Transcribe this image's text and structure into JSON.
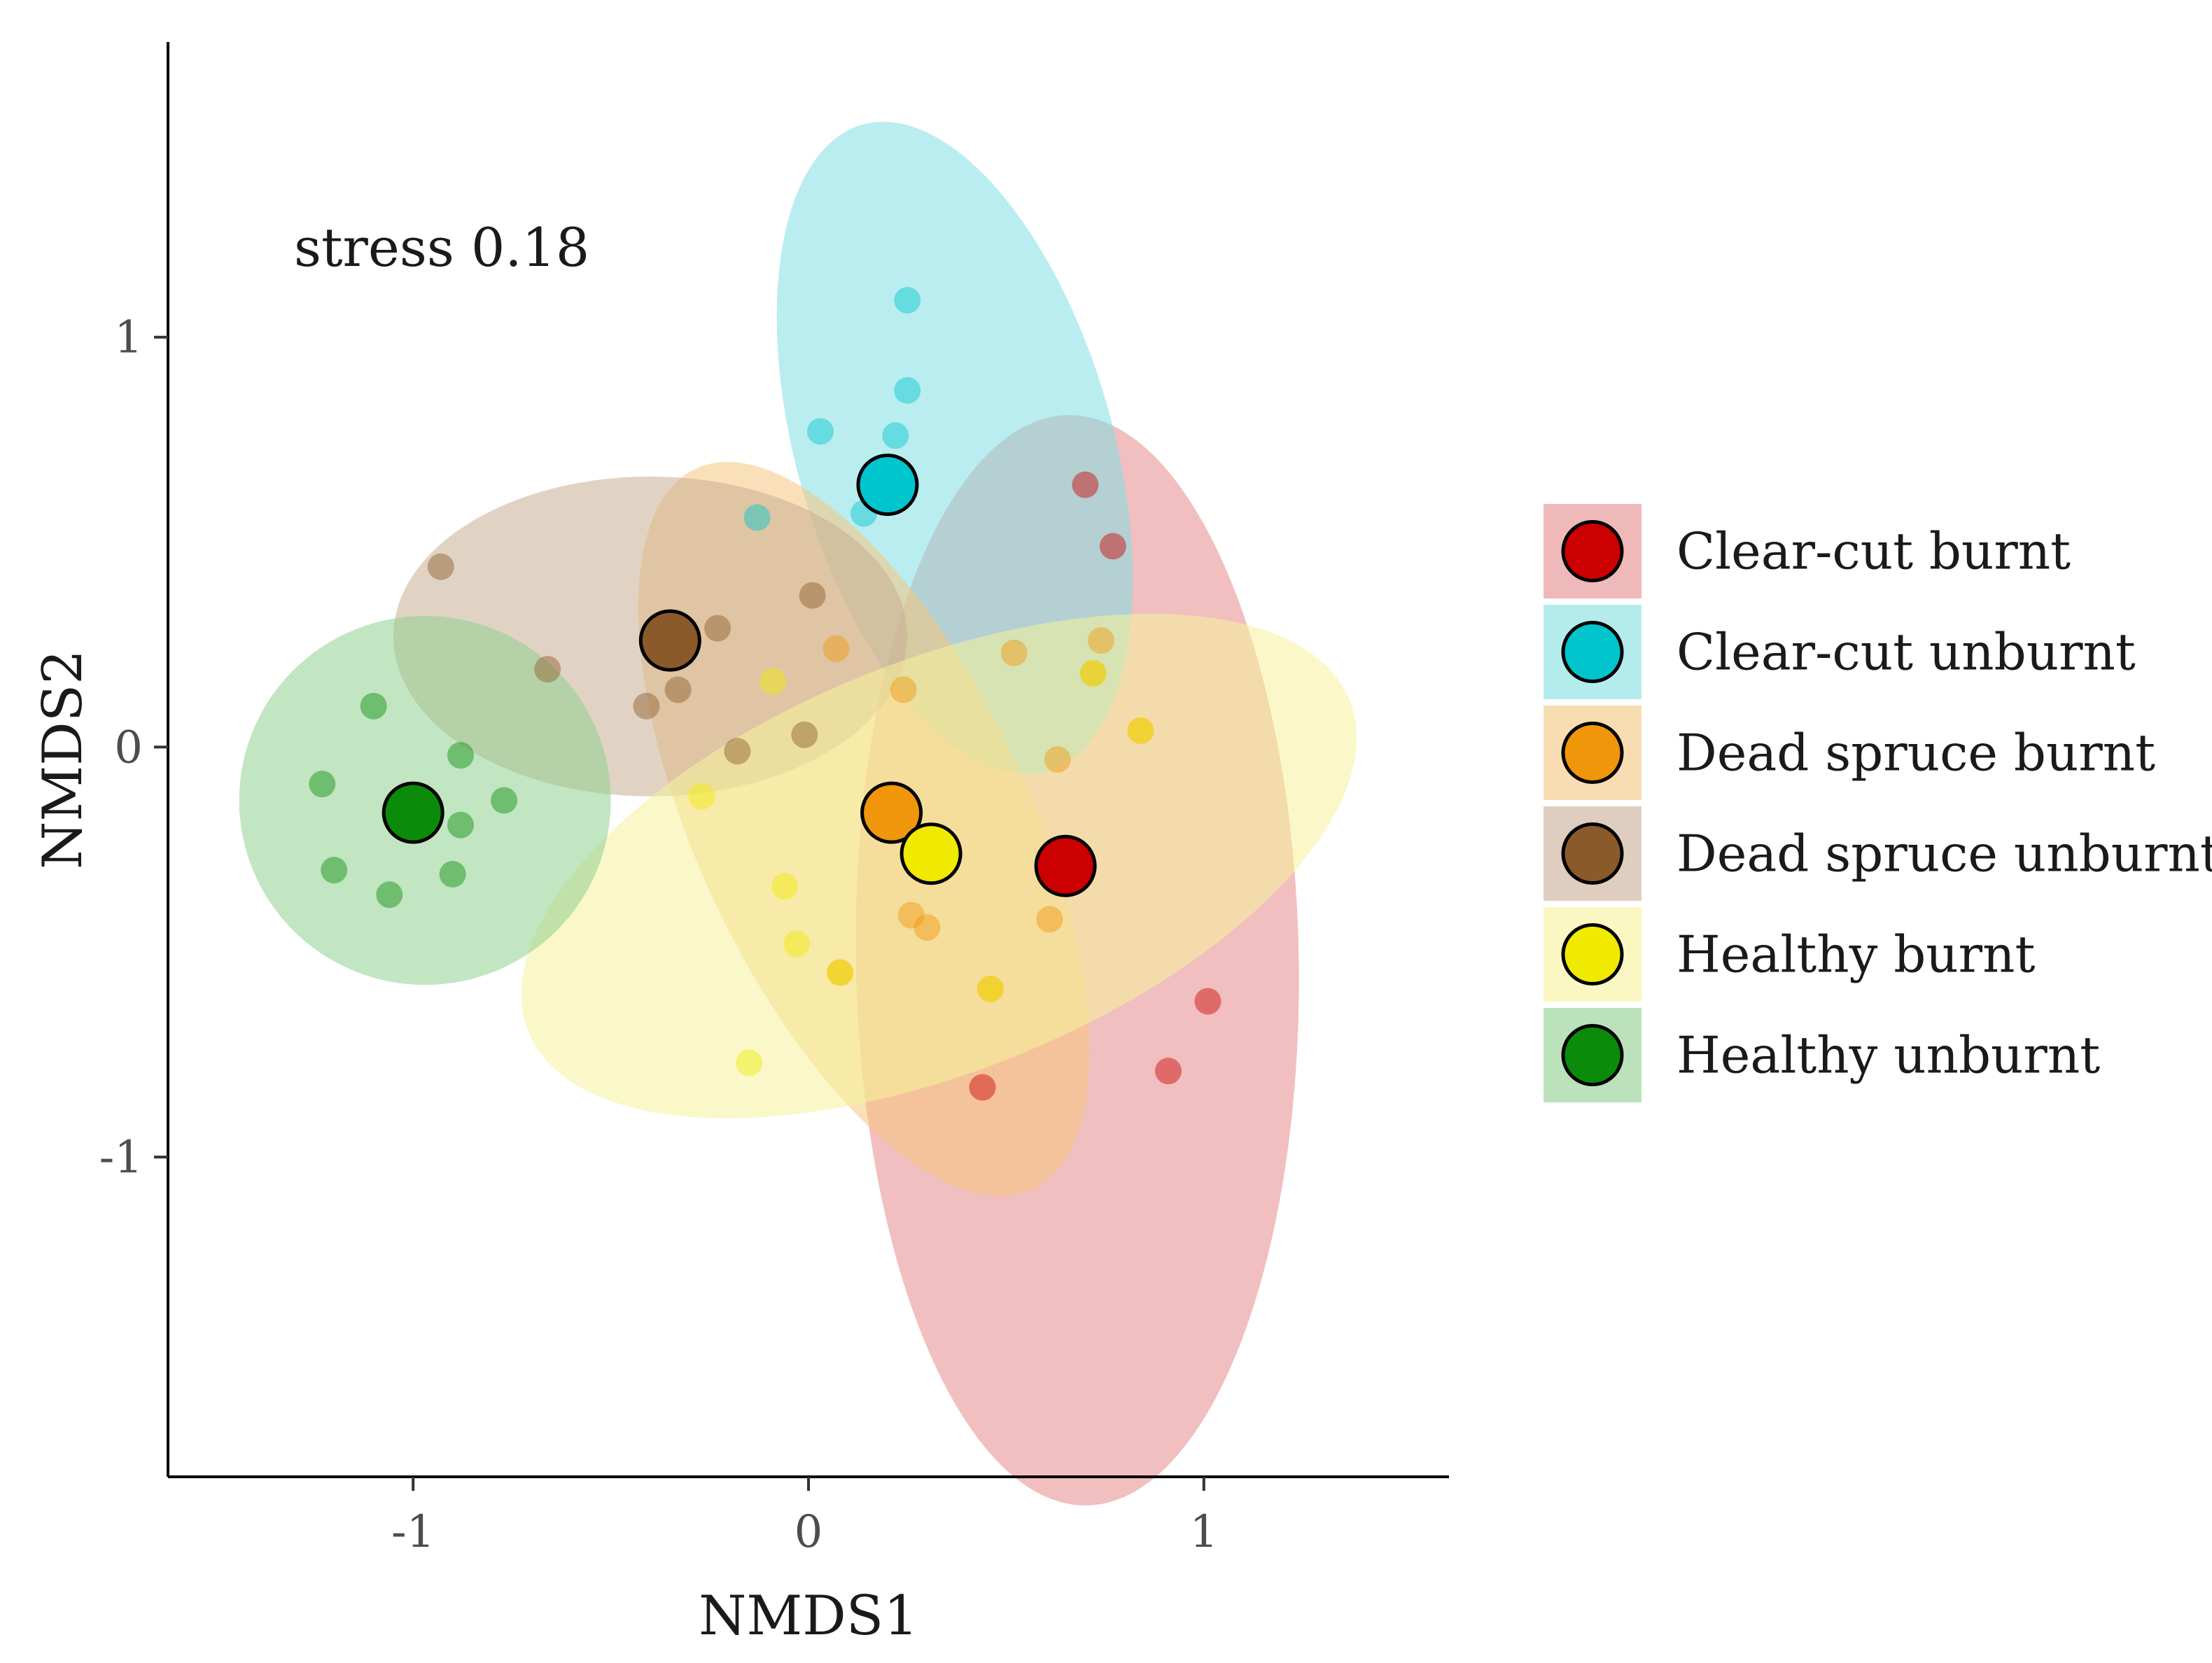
{
  "chart_data": {
    "type": "scatter",
    "title": "",
    "xlabel": "NMDS1",
    "ylabel": "NMDS2",
    "xlim": [
      -1.62,
      1.62
    ],
    "ylim": [
      -1.78,
      1.72
    ],
    "xticks": [
      -1,
      0,
      1
    ],
    "yticks": [
      -1,
      0,
      1
    ],
    "xtick_labels": [
      "-1",
      "0",
      "1"
    ],
    "ytick_labels": [
      "-1",
      "0",
      "1"
    ],
    "grid": false,
    "legend_position": "right",
    "annotation": "stress 0.18",
    "series": [
      {
        "name": "Clear-cut burnt",
        "color": "#cc0000",
        "fill": "#e58a8a",
        "centroid": [
          0.65,
          -0.29
        ],
        "ellipse": {
          "center": [
            0.68,
            -0.52
          ],
          "radii": [
            0.56,
            1.33
          ],
          "angle_deg": 1
        },
        "points": [
          [
            0.7,
            0.64
          ],
          [
            0.77,
            0.49
          ],
          [
            1.01,
            -0.62
          ],
          [
            0.91,
            -0.79
          ],
          [
            0.44,
            -0.83
          ]
        ]
      },
      {
        "name": "Clear-cut unburnt",
        "color": "#00c5cd",
        "fill": "#82dfe3",
        "centroid": [
          0.2,
          0.64
        ],
        "ellipse": {
          "center": [
            0.37,
            0.73
          ],
          "radii": [
            0.4,
            0.82
          ],
          "angle_deg": 16
        },
        "points": [
          [
            0.25,
            1.09
          ],
          [
            0.25,
            0.87
          ],
          [
            0.03,
            0.77
          ],
          [
            0.22,
            0.76
          ],
          [
            0.14,
            0.57
          ],
          [
            -0.13,
            0.56
          ]
        ]
      },
      {
        "name": "Dead spruce burnt",
        "color": "#f0960a",
        "fill": "#f5c77e",
        "centroid": [
          0.21,
          -0.16
        ],
        "ellipse": {
          "center": [
            0.14,
            -0.2
          ],
          "radii": [
            0.42,
            0.97
          ],
          "angle_deg": 25
        },
        "points": [
          [
            0.52,
            0.23
          ],
          [
            0.74,
            0.26
          ],
          [
            0.72,
            0.18
          ],
          [
            0.84,
            0.04
          ],
          [
            0.63,
            -0.03
          ],
          [
            0.26,
            -0.41
          ],
          [
            0.3,
            -0.44
          ],
          [
            0.61,
            -0.42
          ],
          [
            0.08,
            -0.55
          ],
          [
            0.46,
            -0.59
          ],
          [
            0.24,
            0.14
          ],
          [
            0.07,
            0.24
          ]
        ]
      },
      {
        "name": "Dead spruce unburnt",
        "color": "#8b5a2b",
        "fill": "#c9ae94",
        "centroid": [
          -0.35,
          0.26
        ],
        "ellipse": {
          "center": [
            -0.4,
            0.27
          ],
          "radii": [
            0.65,
            0.39
          ],
          "angle_deg": 0
        },
        "points": [
          [
            -0.93,
            0.44
          ],
          [
            -0.66,
            0.19
          ],
          [
            -0.41,
            0.1
          ],
          [
            -0.33,
            0.14
          ],
          [
            -0.23,
            0.29
          ],
          [
            0.01,
            0.37
          ],
          [
            -0.18,
            -0.01
          ],
          [
            -0.01,
            0.03
          ]
        ]
      },
      {
        "name": "Healthy burnt",
        "color": "#f0ea00",
        "fill": "#f6f29a",
        "centroid": [
          0.31,
          -0.26
        ],
        "ellipse": {
          "center": [
            0.33,
            -0.29
          ],
          "radii": [
            1.12,
            0.5
          ],
          "angle_deg": 22
        },
        "points": [
          [
            -0.27,
            -0.12
          ],
          [
            -0.06,
            -0.34
          ],
          [
            -0.03,
            -0.48
          ],
          [
            0.08,
            -0.55
          ],
          [
            -0.15,
            -0.77
          ],
          [
            0.46,
            -0.59
          ],
          [
            0.72,
            0.18
          ],
          [
            0.84,
            0.04
          ],
          [
            -0.09,
            0.16
          ]
        ]
      },
      {
        "name": "Healthy unburnt",
        "color": "#0a8c0a",
        "fill": "#8fcf8f",
        "centroid": [
          -1.0,
          -0.16
        ],
        "ellipse": {
          "center": [
            -0.97,
            -0.13
          ],
          "radii": [
            0.47,
            0.45
          ],
          "angle_deg": 0
        },
        "points": [
          [
            -1.1,
            0.1
          ],
          [
            -0.88,
            -0.02
          ],
          [
            -0.77,
            -0.13
          ],
          [
            -1.23,
            -0.09
          ],
          [
            -0.88,
            -0.19
          ],
          [
            -1.2,
            -0.3
          ],
          [
            -0.9,
            -0.31
          ],
          [
            -1.06,
            -0.36
          ]
        ]
      }
    ]
  }
}
